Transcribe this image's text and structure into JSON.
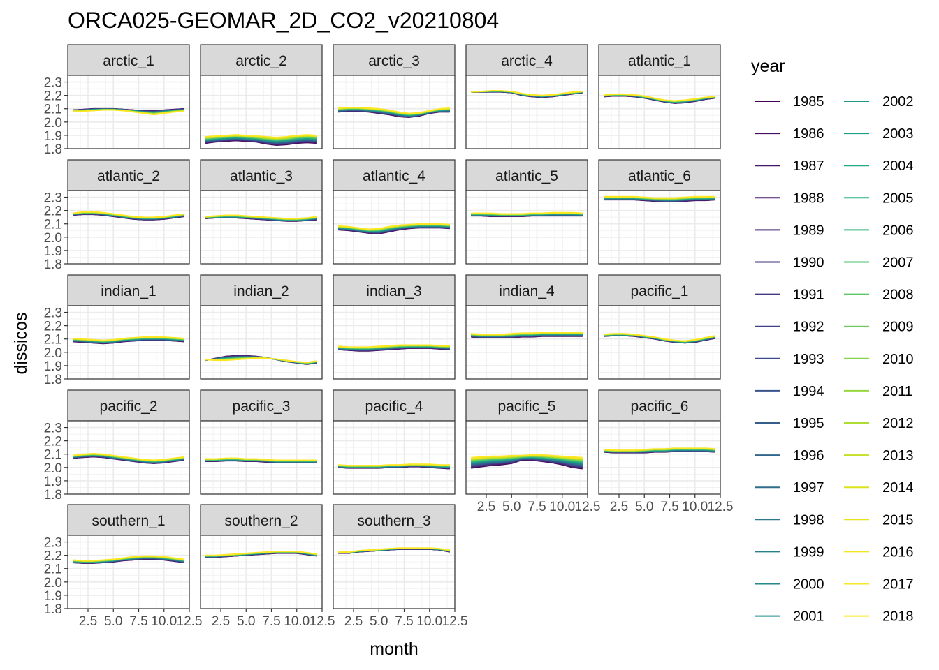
{
  "chart_data": {
    "type": "line",
    "title": "ORCA025-GEOMAR_2D_CO2_v20210804",
    "xlabel": "month",
    "ylabel": "dissicos",
    "xlim": [
      0.5,
      12.5
    ],
    "ylim": [
      1.8,
      2.35
    ],
    "x_ticks": [
      2.5,
      5.0,
      7.5,
      10.0,
      12.5
    ],
    "x_tick_labels": [
      "2.5",
      "5.0",
      "7.5",
      "10.0",
      "12.5"
    ],
    "y_ticks": [
      1.8,
      1.9,
      2.0,
      2.1,
      2.2,
      2.3
    ],
    "y_tick_labels": [
      "1.8",
      "1.9",
      "2.0",
      "2.1",
      "2.2",
      "2.3"
    ],
    "grid": true,
    "legend": {
      "title": "year",
      "position": "right",
      "columns": 2,
      "years": [
        1985,
        1986,
        1987,
        1988,
        1989,
        1990,
        1991,
        1992,
        1993,
        1994,
        1995,
        1996,
        1997,
        1998,
        1999,
        2000,
        2001,
        2002,
        2003,
        2004,
        2005,
        2006,
        2007,
        2008,
        2009,
        2010,
        2011,
        2012,
        2013,
        2014,
        2015,
        2016,
        2017,
        2018
      ],
      "colors": [
        "#440154",
        "#460b5e",
        "#481467",
        "#481d6f",
        "#472677",
        "#45307e",
        "#433984",
        "#3f4288",
        "#3c4b8b",
        "#38548c",
        "#355e8d",
        "#31668e",
        "#2e6f8e",
        "#2b788e",
        "#28808e",
        "#25888e",
        "#22918d",
        "#1f998b",
        "#1fa189",
        "#22a985",
        "#2bb180",
        "#3ab97a",
        "#4ac16d",
        "#5bc764",
        "#6dcd59",
        "#82d34d",
        "#97d83f",
        "#aedc31",
        "#c5e021",
        "#dae319",
        "#e6e419",
        "#f0e51e",
        "#f7e724",
        "#fde725"
      ]
    },
    "x_months": [
      1,
      2,
      3,
      4,
      5,
      6,
      7,
      8,
      9,
      10,
      11,
      12
    ],
    "panels": [
      {
        "name": "arctic_1",
        "first": [
          2.09,
          2.095,
          2.1,
          2.1,
          2.1,
          2.095,
          2.09,
          2.085,
          2.085,
          2.09,
          2.095,
          2.1
        ],
        "last": [
          2.08,
          2.08,
          2.085,
          2.09,
          2.09,
          2.085,
          2.075,
          2.065,
          2.055,
          2.065,
          2.075,
          2.08
        ]
      },
      {
        "name": "arctic_2",
        "first": [
          1.84,
          1.85,
          1.855,
          1.86,
          1.855,
          1.85,
          1.835,
          1.825,
          1.83,
          1.84,
          1.845,
          1.84
        ],
        "last": [
          1.89,
          1.895,
          1.9,
          1.905,
          1.9,
          1.895,
          1.89,
          1.885,
          1.89,
          1.9,
          1.905,
          1.9
        ]
      },
      {
        "name": "arctic_3",
        "first": [
          2.075,
          2.08,
          2.08,
          2.075,
          2.065,
          2.055,
          2.04,
          2.035,
          2.045,
          2.065,
          2.075,
          2.075
        ],
        "last": [
          2.105,
          2.11,
          2.11,
          2.105,
          2.1,
          2.09,
          2.075,
          2.065,
          2.07,
          2.085,
          2.1,
          2.105
        ]
      },
      {
        "name": "arctic_4",
        "first": [
          2.225,
          2.225,
          2.225,
          2.225,
          2.22,
          2.2,
          2.19,
          2.185,
          2.19,
          2.2,
          2.21,
          2.22
        ],
        "last": [
          2.225,
          2.23,
          2.235,
          2.235,
          2.23,
          2.215,
          2.205,
          2.2,
          2.205,
          2.215,
          2.225,
          2.23
        ]
      },
      {
        "name": "atlantic_1",
        "first": [
          2.19,
          2.195,
          2.195,
          2.19,
          2.18,
          2.165,
          2.15,
          2.14,
          2.145,
          2.155,
          2.17,
          2.18
        ],
        "last": [
          2.205,
          2.21,
          2.21,
          2.205,
          2.195,
          2.18,
          2.165,
          2.16,
          2.165,
          2.175,
          2.185,
          2.195
        ]
      },
      {
        "name": "atlantic_2",
        "first": [
          2.165,
          2.17,
          2.17,
          2.165,
          2.155,
          2.145,
          2.135,
          2.13,
          2.13,
          2.135,
          2.145,
          2.155
        ],
        "last": [
          2.18,
          2.19,
          2.19,
          2.185,
          2.175,
          2.165,
          2.155,
          2.15,
          2.15,
          2.155,
          2.165,
          2.175
        ]
      },
      {
        "name": "atlantic_3",
        "first": [
          2.14,
          2.145,
          2.145,
          2.145,
          2.14,
          2.135,
          2.13,
          2.125,
          2.12,
          2.12,
          2.125,
          2.13
        ],
        "last": [
          2.155,
          2.16,
          2.165,
          2.165,
          2.16,
          2.155,
          2.15,
          2.145,
          2.14,
          2.14,
          2.145,
          2.155
        ]
      },
      {
        "name": "atlantic_4",
        "first": [
          2.055,
          2.05,
          2.04,
          2.03,
          2.025,
          2.04,
          2.055,
          2.065,
          2.07,
          2.07,
          2.07,
          2.065
        ],
        "last": [
          2.085,
          2.08,
          2.07,
          2.06,
          2.065,
          2.08,
          2.09,
          2.095,
          2.1,
          2.1,
          2.1,
          2.095
        ]
      },
      {
        "name": "atlantic_5",
        "first": [
          2.16,
          2.16,
          2.155,
          2.155,
          2.155,
          2.155,
          2.16,
          2.16,
          2.16,
          2.16,
          2.16,
          2.16
        ],
        "last": [
          2.18,
          2.18,
          2.18,
          2.175,
          2.175,
          2.175,
          2.18,
          2.18,
          2.185,
          2.185,
          2.185,
          2.18
        ]
      },
      {
        "name": "atlantic_6",
        "first": [
          2.28,
          2.28,
          2.28,
          2.28,
          2.275,
          2.27,
          2.265,
          2.265,
          2.27,
          2.275,
          2.275,
          2.28
        ],
        "last": [
          2.305,
          2.305,
          2.305,
          2.305,
          2.3,
          2.295,
          2.295,
          2.295,
          2.3,
          2.305,
          2.305,
          2.305
        ]
      },
      {
        "name": "indian_1",
        "first": [
          2.08,
          2.075,
          2.07,
          2.065,
          2.07,
          2.08,
          2.085,
          2.09,
          2.09,
          2.09,
          2.085,
          2.08
        ],
        "last": [
          2.105,
          2.1,
          2.095,
          2.09,
          2.095,
          2.105,
          2.11,
          2.115,
          2.115,
          2.115,
          2.11,
          2.105
        ]
      },
      {
        "name": "indian_2",
        "first": [
          1.94,
          1.955,
          1.97,
          1.975,
          1.975,
          1.97,
          1.96,
          1.945,
          1.93,
          1.92,
          1.91,
          1.92
        ],
        "last": [
          1.945,
          1.94,
          1.94,
          1.945,
          1.95,
          1.955,
          1.955,
          1.95,
          1.94,
          1.93,
          1.925,
          1.935
        ]
      },
      {
        "name": "indian_3",
        "first": [
          2.02,
          2.015,
          2.01,
          2.01,
          2.015,
          2.02,
          2.025,
          2.03,
          2.03,
          2.03,
          2.025,
          2.02
        ],
        "last": [
          2.045,
          2.04,
          2.04,
          2.04,
          2.045,
          2.05,
          2.055,
          2.055,
          2.055,
          2.055,
          2.05,
          2.05
        ]
      },
      {
        "name": "indian_4",
        "first": [
          2.115,
          2.11,
          2.11,
          2.11,
          2.11,
          2.115,
          2.115,
          2.12,
          2.12,
          2.12,
          2.12,
          2.12
        ],
        "last": [
          2.14,
          2.135,
          2.135,
          2.135,
          2.14,
          2.145,
          2.145,
          2.15,
          2.15,
          2.15,
          2.15,
          2.15
        ]
      },
      {
        "name": "pacific_1",
        "first": [
          2.12,
          2.125,
          2.125,
          2.12,
          2.11,
          2.1,
          2.085,
          2.075,
          2.07,
          2.075,
          2.09,
          2.105
        ],
        "last": [
          2.135,
          2.14,
          2.14,
          2.135,
          2.125,
          2.115,
          2.1,
          2.09,
          2.085,
          2.095,
          2.11,
          2.125
        ]
      },
      {
        "name": "pacific_2",
        "first": [
          2.07,
          2.075,
          2.08,
          2.075,
          2.065,
          2.055,
          2.045,
          2.035,
          2.03,
          2.035,
          2.045,
          2.055
        ],
        "last": [
          2.09,
          2.1,
          2.105,
          2.1,
          2.09,
          2.08,
          2.07,
          2.06,
          2.055,
          2.06,
          2.07,
          2.08
        ]
      },
      {
        "name": "pacific_3",
        "first": [
          2.045,
          2.045,
          2.05,
          2.05,
          2.045,
          2.045,
          2.04,
          2.035,
          2.035,
          2.035,
          2.035,
          2.035
        ],
        "last": [
          2.065,
          2.065,
          2.07,
          2.07,
          2.065,
          2.065,
          2.06,
          2.055,
          2.055,
          2.055,
          2.055,
          2.055
        ]
      },
      {
        "name": "pacific_4",
        "first": [
          2.0,
          1.995,
          1.995,
          1.995,
          1.995,
          2.0,
          2.0,
          2.005,
          2.005,
          2.0,
          1.995,
          1.99
        ],
        "last": [
          2.02,
          2.015,
          2.015,
          2.015,
          2.015,
          2.02,
          2.02,
          2.025,
          2.025,
          2.025,
          2.02,
          2.02
        ]
      },
      {
        "name": "pacific_5",
        "first": [
          1.995,
          2.005,
          2.015,
          2.02,
          2.03,
          2.055,
          2.055,
          2.045,
          2.035,
          2.02,
          2.0,
          1.99
        ],
        "last": [
          2.075,
          2.08,
          2.085,
          2.085,
          2.09,
          2.09,
          2.095,
          2.095,
          2.09,
          2.085,
          2.08,
          2.075
        ]
      },
      {
        "name": "pacific_6",
        "first": [
          2.115,
          2.11,
          2.11,
          2.11,
          2.11,
          2.115,
          2.115,
          2.12,
          2.12,
          2.12,
          2.12,
          2.115
        ],
        "last": [
          2.135,
          2.13,
          2.13,
          2.13,
          2.135,
          2.14,
          2.14,
          2.145,
          2.145,
          2.145,
          2.145,
          2.14
        ]
      },
      {
        "name": "southern_1",
        "first": [
          2.145,
          2.14,
          2.14,
          2.145,
          2.15,
          2.16,
          2.165,
          2.17,
          2.17,
          2.165,
          2.155,
          2.145
        ],
        "last": [
          2.165,
          2.16,
          2.16,
          2.165,
          2.17,
          2.18,
          2.19,
          2.195,
          2.195,
          2.19,
          2.18,
          2.17
        ]
      },
      {
        "name": "southern_2",
        "first": [
          2.185,
          2.185,
          2.19,
          2.195,
          2.2,
          2.205,
          2.21,
          2.215,
          2.215,
          2.215,
          2.205,
          2.195
        ],
        "last": [
          2.2,
          2.2,
          2.205,
          2.21,
          2.215,
          2.22,
          2.225,
          2.23,
          2.23,
          2.23,
          2.22,
          2.21
        ]
      },
      {
        "name": "southern_3",
        "first": [
          2.215,
          2.215,
          2.225,
          2.23,
          2.235,
          2.24,
          2.245,
          2.245,
          2.245,
          2.245,
          2.24,
          2.225
        ],
        "last": [
          2.225,
          2.225,
          2.235,
          2.24,
          2.245,
          2.25,
          2.255,
          2.255,
          2.255,
          2.255,
          2.25,
          2.24
        ]
      }
    ]
  }
}
